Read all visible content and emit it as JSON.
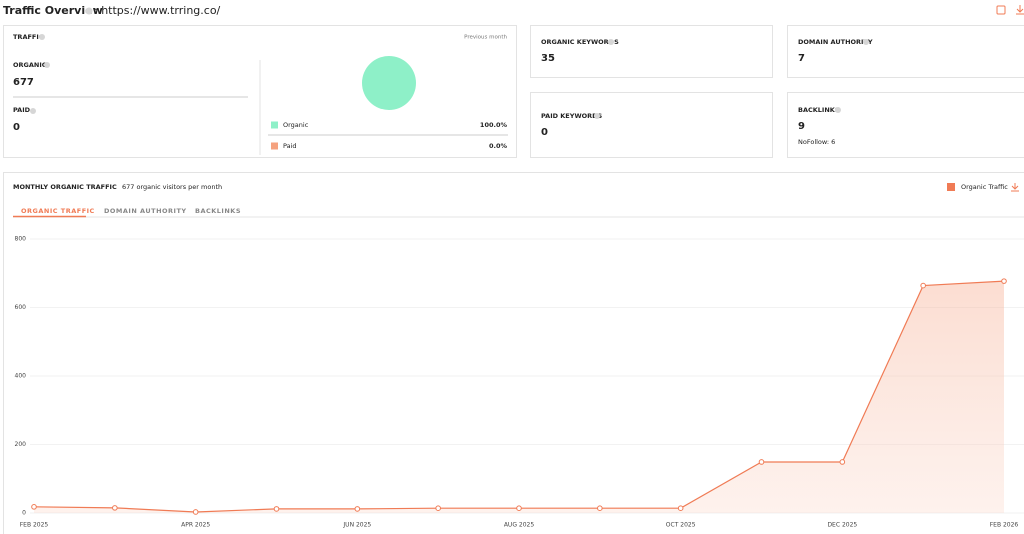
{
  "header": {
    "title": "Traffic Overview",
    "url": ": https://www.trring.co/"
  },
  "traffic": {
    "label": "TRAFFIC",
    "period": "Previous month",
    "organic": {
      "label": "ORGANIC",
      "value": 677
    },
    "paid": {
      "label": "PAID",
      "value": 0
    },
    "share": {
      "type": "pie",
      "names": [
        "Organic",
        "Paid"
      ],
      "values": [
        100.0,
        0.0
      ],
      "value_labels": [
        "100.0%",
        "0.0%"
      ],
      "colors": [
        "#8ef0c8",
        "#f5a27f"
      ]
    }
  },
  "metrics": {
    "organic_keywords": {
      "label": "ORGANIC KEYWORDS",
      "value": 35
    },
    "domain_authority": {
      "label": "DOMAIN AUTHORITY",
      "value": 7
    },
    "paid_keywords": {
      "label": "PAID KEYWORDS",
      "value": 0
    },
    "backlinks": {
      "label": "BACKLINKS",
      "value": 9,
      "nofollow": "NoFollow: 6"
    }
  },
  "monthly": {
    "title": "MONTHLY ORGANIC TRAFFIC",
    "subtitle": "677 organic visitors per month",
    "tabs": [
      "ORGANIC TRAFFIC",
      "DOMAIN AUTHORITY",
      "BACKLINKS"
    ]
  },
  "chart_data": {
    "type": "line",
    "categories": [
      "FEB 2025",
      null,
      "APR 2025",
      null,
      "JUN 2025",
      null,
      "AUG 2025",
      null,
      "OCT 2025",
      null,
      "DEC 2025",
      null,
      "FEB 2026"
    ],
    "series": [
      {
        "name": "Organic Traffic",
        "color": "#f07b55",
        "values": [
          18,
          15,
          3,
          12,
          12,
          14,
          14,
          14,
          14,
          149,
          149,
          664,
          677
        ]
      }
    ],
    "ylim": [
      0,
      800
    ],
    "yticks": [
      0,
      200,
      400,
      600,
      800
    ],
    "grid": true,
    "area": true,
    "legend": "top-right"
  }
}
